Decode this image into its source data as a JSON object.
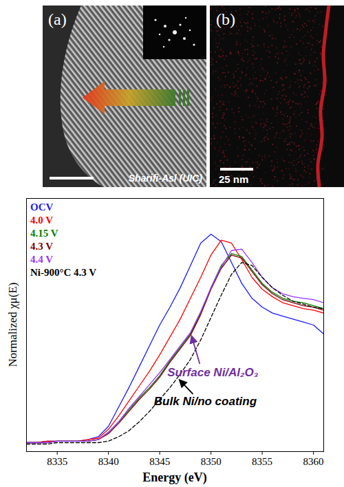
{
  "images": [
    {
      "label": "(a)",
      "credit": "Sharifi-Asl (UIC)"
    },
    {
      "label": "(b)",
      "scale_bar": "25 nm"
    }
  ],
  "chart_data": {
    "type": "line",
    "xlabel": "Energy (eV)",
    "ylabel": "Normalized χμ(E)",
    "x": [
      8332,
      8333,
      8334,
      8335,
      8336,
      8337,
      8338,
      8339,
      8340,
      8341,
      8342,
      8343,
      8344,
      8345,
      8346,
      8347,
      8348,
      8349,
      8350,
      8351,
      8352,
      8353,
      8354,
      8355,
      8356,
      8357,
      8358,
      8359,
      8360,
      8361
    ],
    "xlim": [
      8332,
      8361
    ],
    "xticks": [
      8335,
      8340,
      8345,
      8350,
      8355,
      8360
    ],
    "ylim": [
      -0.05,
      1.65
    ],
    "yticks": [],
    "tick_labels": "x",
    "legend": "top-left",
    "series": [
      {
        "name": "OCV",
        "color": "#1a1aff",
        "line_style": "solid",
        "values": [
          0.01,
          0.01,
          0.02,
          0.02,
          0.02,
          0.02,
          0.03,
          0.05,
          0.12,
          0.25,
          0.38,
          0.52,
          0.66,
          0.8,
          0.92,
          1.05,
          1.2,
          1.35,
          1.41,
          1.36,
          1.22,
          1.08,
          0.98,
          0.92,
          0.88,
          0.86,
          0.84,
          0.82,
          0.8,
          0.74
        ]
      },
      {
        "name": "4.0 V",
        "color": "#ff0000",
        "line_style": "solid",
        "values": [
          0.01,
          0.01,
          0.02,
          0.02,
          0.02,
          0.02,
          0.03,
          0.04,
          0.1,
          0.19,
          0.29,
          0.39,
          0.49,
          0.6,
          0.72,
          0.84,
          0.98,
          1.12,
          1.27,
          1.37,
          1.35,
          1.24,
          1.12,
          1.04,
          0.99,
          0.95,
          0.93,
          0.91,
          0.9,
          0.88
        ]
      },
      {
        "name": "4.15 V",
        "color": "#008000",
        "line_style": "solid",
        "values": [
          0.01,
          0.01,
          0.01,
          0.02,
          0.02,
          0.02,
          0.02,
          0.03,
          0.08,
          0.15,
          0.23,
          0.31,
          0.38,
          0.46,
          0.56,
          0.65,
          0.74,
          0.88,
          1.05,
          1.2,
          1.28,
          1.26,
          1.17,
          1.08,
          1.02,
          0.98,
          0.96,
          0.95,
          0.93,
          0.91
        ]
      },
      {
        "name": "4.3 V",
        "color": "#800000",
        "line_style": "solid",
        "values": [
          0.01,
          0.01,
          0.01,
          0.02,
          0.02,
          0.02,
          0.02,
          0.03,
          0.07,
          0.14,
          0.22,
          0.3,
          0.37,
          0.45,
          0.55,
          0.64,
          0.73,
          0.87,
          1.04,
          1.18,
          1.27,
          1.25,
          1.16,
          1.07,
          1.01,
          0.97,
          0.95,
          0.93,
          0.92,
          0.9
        ]
      },
      {
        "name": "4.4 V",
        "color": "#9933ff",
        "line_style": "solid",
        "values": [
          0.01,
          0.01,
          0.01,
          0.02,
          0.02,
          0.02,
          0.02,
          0.03,
          0.08,
          0.15,
          0.24,
          0.32,
          0.4,
          0.48,
          0.57,
          0.66,
          0.75,
          0.89,
          1.05,
          1.19,
          1.3,
          1.31,
          1.22,
          1.12,
          1.05,
          1.01,
          0.99,
          0.98,
          0.97,
          0.95
        ]
      },
      {
        "name": "Ni-900°C 4.3 V",
        "color": "#000000",
        "line_style": "dashed",
        "values": [
          0.0,
          0.0,
          0.0,
          0.01,
          0.01,
          0.01,
          0.01,
          0.01,
          0.02,
          0.05,
          0.09,
          0.15,
          0.22,
          0.3,
          0.38,
          0.47,
          0.57,
          0.7,
          0.85,
          1.0,
          1.14,
          1.22,
          1.2,
          1.12,
          1.05,
          1.0,
          0.96,
          0.94,
          0.92,
          0.91
        ]
      }
    ],
    "annotations": [
      {
        "text": "Surface Ni/Al₂O₃",
        "x": 8348,
        "y": 0.74,
        "color": "#7030a0"
      },
      {
        "text": "Bulk Ni/no coating",
        "x": 8346.8,
        "y": 0.445,
        "color": "#000000"
      }
    ]
  }
}
